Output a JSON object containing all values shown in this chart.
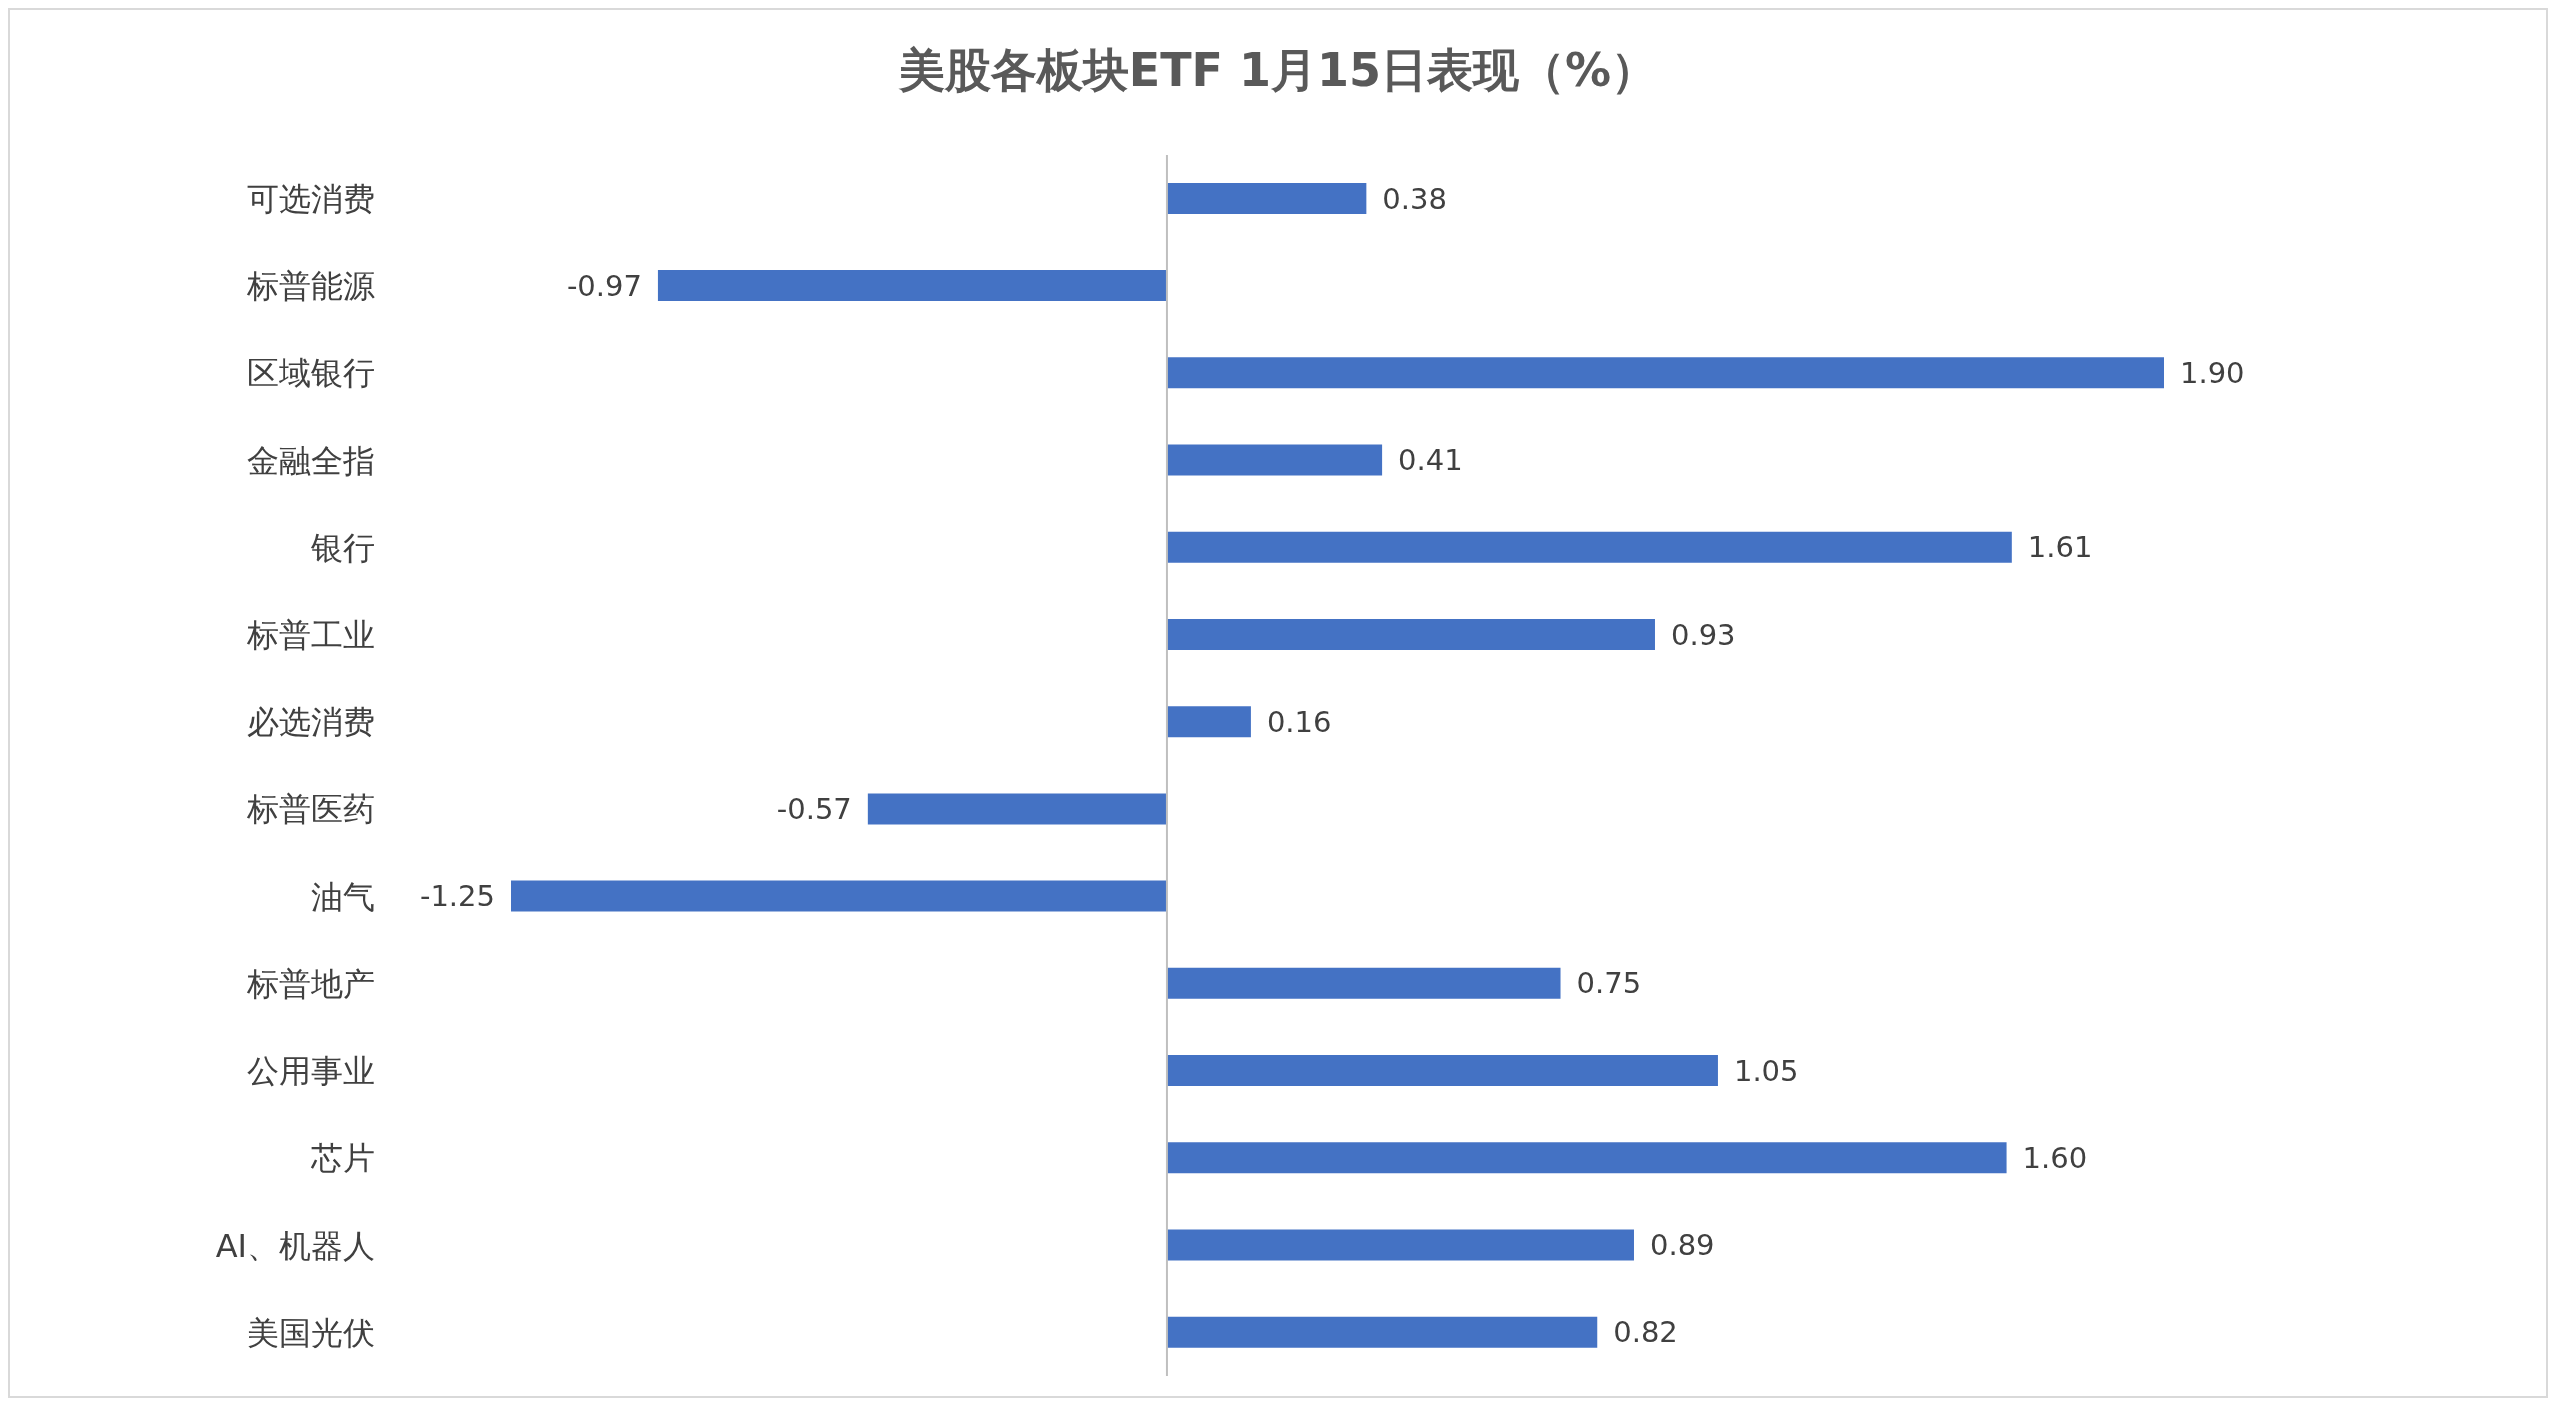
{
  "chart_data": {
    "type": "bar",
    "orientation": "horizontal",
    "title": "美股各板块ETF  1月15日表现（%）",
    "categories": [
      "可选消费",
      "标普能源",
      "区域银行",
      "金融全指",
      "银行",
      "标普工业",
      "必选消费",
      "标普医药",
      "油气",
      "标普地产",
      "公用事业",
      "芯片",
      "AI、机器人",
      "美国光伏"
    ],
    "values": [
      0.38,
      -0.97,
      1.9,
      0.41,
      1.61,
      0.93,
      0.16,
      -0.57,
      -1.25,
      0.75,
      1.05,
      1.6,
      0.89,
      0.82
    ],
    "value_labels": [
      "0.38",
      "-0.97",
      "1.90",
      "0.41",
      "1.61",
      "0.93",
      "0.16",
      "-0.57",
      "-1.25",
      "0.75",
      "1.05",
      "1.60",
      "0.89",
      "0.82"
    ],
    "color": "#4472c4"
  }
}
